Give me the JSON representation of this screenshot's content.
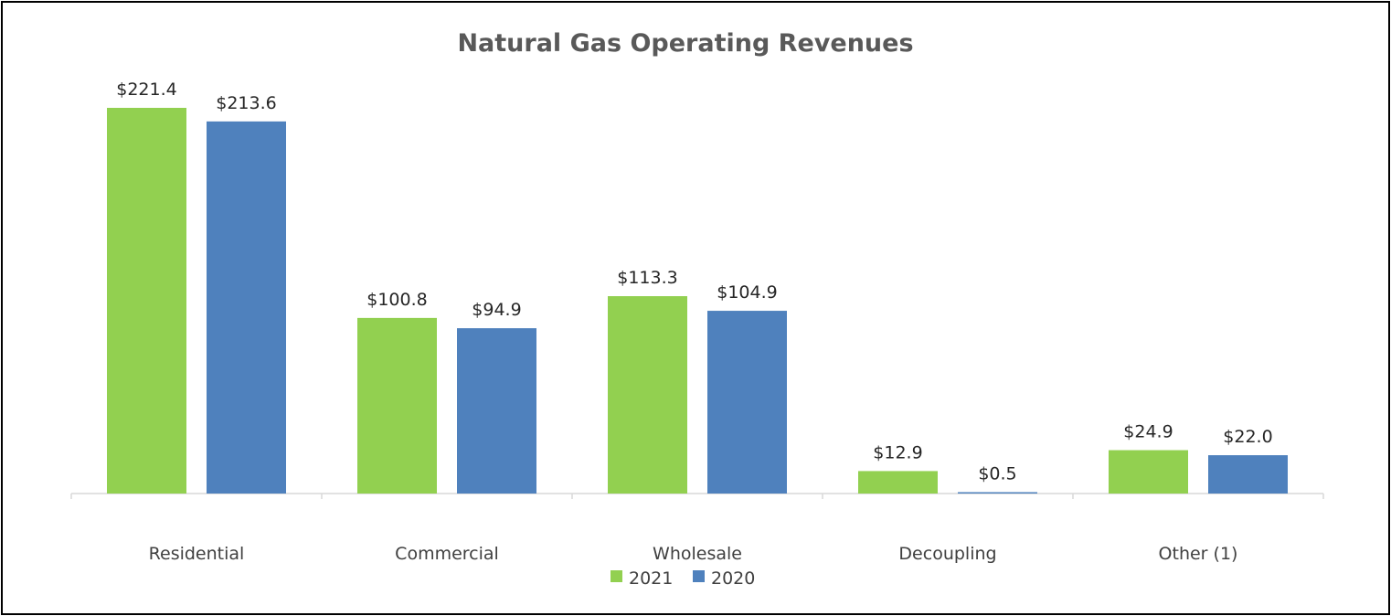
{
  "chart_data": {
    "type": "bar",
    "title": "Natural Gas Operating Revenues",
    "categories": [
      "Residential",
      "Commercial",
      "Wholesale",
      "Decoupling",
      "Other (1)"
    ],
    "series": [
      {
        "name": "2021",
        "color": "#92D050",
        "values": [
          221.4,
          100.8,
          113.3,
          12.9,
          24.9
        ],
        "labels": [
          "$221.4",
          "$100.8",
          "$113.3",
          "$12.9",
          "$24.9"
        ]
      },
      {
        "name": "2020",
        "color": "#4F81BD",
        "values": [
          213.6,
          94.9,
          104.9,
          0.5,
          22.0
        ],
        "labels": [
          "$213.6",
          "$94.9",
          "$104.9",
          "$0.5",
          "$22.0"
        ]
      }
    ],
    "xlabel": "",
    "ylabel": "",
    "ylim": [
      0,
      221.4
    ],
    "grid": false,
    "legend": "bottom-center"
  }
}
